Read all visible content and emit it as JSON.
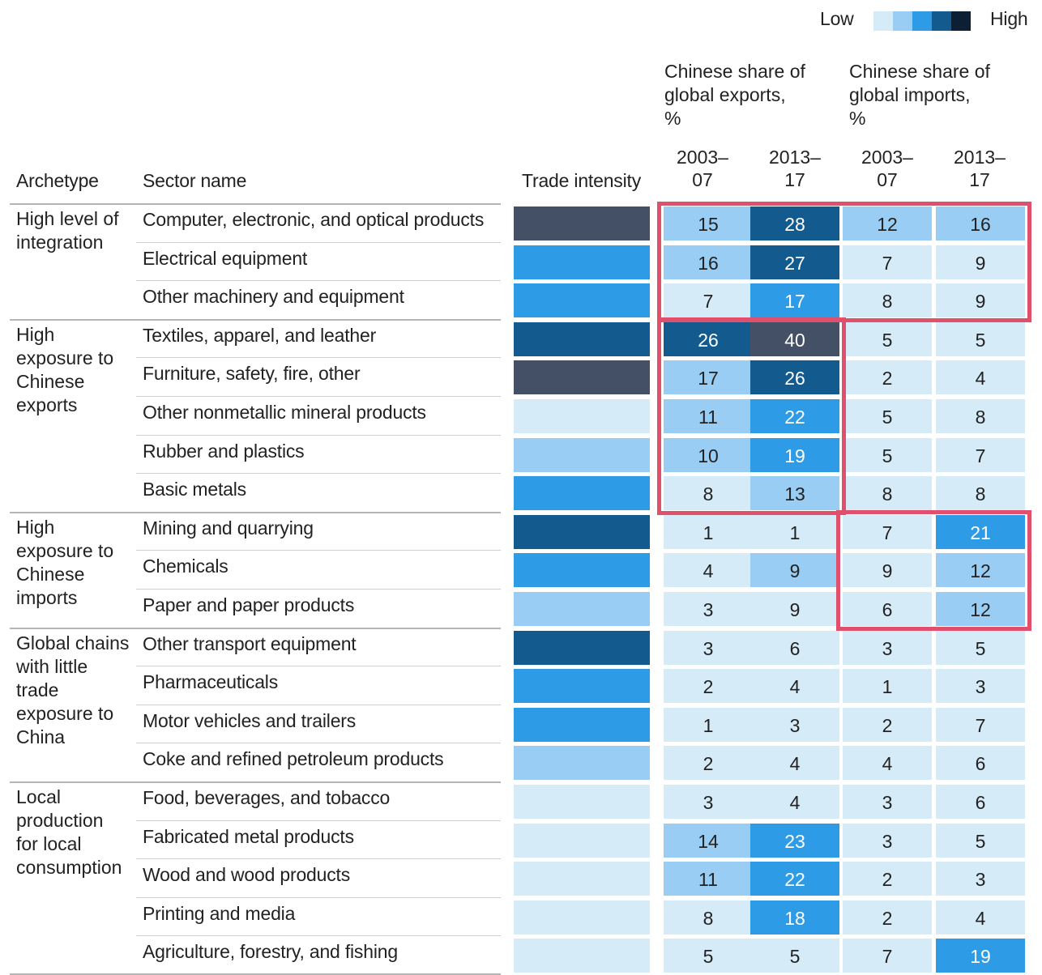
{
  "legend": {
    "low_label": "Low",
    "high_label": "High",
    "colors": [
      "#d6ebf8",
      "#99cdf3",
      "#2e9be6",
      "#135b8f",
      "#0c1f33"
    ]
  },
  "headers": {
    "archetype": "Archetype",
    "sector": "Sector name",
    "trade_intensity": "Trade intensity",
    "exports_group": [
      "Chinese share of",
      "global exports,",
      "%"
    ],
    "imports_group": [
      "Chinese share of",
      "global imports,",
      "%"
    ],
    "periods": [
      [
        "2003–",
        "07"
      ],
      [
        "2013–",
        "17"
      ],
      [
        "2003–",
        "07"
      ],
      [
        "2013–",
        "17"
      ]
    ]
  },
  "palette": {
    "1": "#d6ebf8",
    "2": "#99cdf3",
    "3": "#2e9be6",
    "4": "#135b8f",
    "5": "#435066"
  },
  "highlight_color": "#e0506d",
  "chart_data": {
    "type": "table",
    "columns": [
      "Archetype",
      "Sector name",
      "Trade intensity",
      "Chinese share of global exports, % 2003–07",
      "Chinese share of global exports, % 2013–17",
      "Chinese share of global imports, % 2003–07",
      "Chinese share of global imports, % 2013–17"
    ],
    "groups": [
      {
        "archetype": [
          "High level of",
          "integration"
        ],
        "rows": [
          0,
          1,
          2
        ]
      },
      {
        "archetype": [
          "High",
          "exposure to",
          "Chinese",
          "exports"
        ],
        "rows": [
          3,
          4,
          5,
          6,
          7
        ]
      },
      {
        "archetype": [
          "High",
          "exposure to",
          "Chinese",
          "imports"
        ],
        "rows": [
          8,
          9,
          10
        ]
      },
      {
        "archetype": [
          "Global chains",
          "with little",
          "trade",
          "exposure to",
          "China"
        ],
        "rows": [
          11,
          12,
          13,
          14
        ]
      },
      {
        "archetype": [
          "Local",
          "production",
          "for local",
          "consumption"
        ],
        "rows": [
          15,
          16,
          17,
          18,
          19
        ]
      }
    ],
    "rows": [
      {
        "sector": "Computer, electronic, and optical products",
        "trade_intensity_level": 5,
        "values": [
          15,
          28,
          12,
          16
        ],
        "levels": [
          2,
          4,
          2,
          2
        ]
      },
      {
        "sector": "Electrical equipment",
        "trade_intensity_level": 3,
        "values": [
          16,
          27,
          7,
          9
        ],
        "levels": [
          2,
          4,
          1,
          1
        ]
      },
      {
        "sector": "Other machinery and equipment",
        "trade_intensity_level": 3,
        "values": [
          7,
          17,
          8,
          9
        ],
        "levels": [
          1,
          3,
          1,
          1
        ]
      },
      {
        "sector": "Textiles, apparel, and leather",
        "trade_intensity_level": 4,
        "values": [
          26,
          40,
          5,
          5
        ],
        "levels": [
          4,
          5,
          1,
          1
        ]
      },
      {
        "sector": "Furniture, safety, fire, other",
        "trade_intensity_level": 5,
        "values": [
          17,
          26,
          2,
          4
        ],
        "levels": [
          2,
          4,
          1,
          1
        ]
      },
      {
        "sector": "Other nonmetallic mineral products",
        "trade_intensity_level": 1,
        "values": [
          11,
          22,
          5,
          8
        ],
        "levels": [
          2,
          3,
          1,
          1
        ]
      },
      {
        "sector": "Rubber and plastics",
        "trade_intensity_level": 2,
        "values": [
          10,
          19,
          5,
          7
        ],
        "levels": [
          2,
          3,
          1,
          1
        ]
      },
      {
        "sector": "Basic metals",
        "trade_intensity_level": 3,
        "values": [
          8,
          13,
          8,
          8
        ],
        "levels": [
          1,
          2,
          1,
          1
        ]
      },
      {
        "sector": "Mining and quarrying",
        "trade_intensity_level": 4,
        "values": [
          1,
          1,
          7,
          21
        ],
        "levels": [
          1,
          1,
          1,
          3
        ]
      },
      {
        "sector": "Chemicals",
        "trade_intensity_level": 3,
        "values": [
          4,
          9,
          9,
          12
        ],
        "levels": [
          1,
          2,
          1,
          2
        ]
      },
      {
        "sector": "Paper and paper products",
        "trade_intensity_level": 2,
        "values": [
          3,
          9,
          6,
          12
        ],
        "levels": [
          1,
          1,
          1,
          2
        ]
      },
      {
        "sector": "Other transport equipment",
        "trade_intensity_level": 4,
        "values": [
          3,
          6,
          3,
          5
        ],
        "levels": [
          1,
          1,
          1,
          1
        ]
      },
      {
        "sector": "Pharmaceuticals",
        "trade_intensity_level": 3,
        "values": [
          2,
          4,
          1,
          3
        ],
        "levels": [
          1,
          1,
          1,
          1
        ]
      },
      {
        "sector": "Motor vehicles and trailers",
        "trade_intensity_level": 3,
        "values": [
          1,
          3,
          2,
          7
        ],
        "levels": [
          1,
          1,
          1,
          1
        ]
      },
      {
        "sector": "Coke and refined petroleum products",
        "trade_intensity_level": 2,
        "values": [
          2,
          4,
          4,
          6
        ],
        "levels": [
          1,
          1,
          1,
          1
        ]
      },
      {
        "sector": "Food, beverages, and tobacco",
        "trade_intensity_level": 1,
        "values": [
          3,
          4,
          3,
          6
        ],
        "levels": [
          1,
          1,
          1,
          1
        ]
      },
      {
        "sector": "Fabricated metal products",
        "trade_intensity_level": 1,
        "values": [
          14,
          23,
          3,
          5
        ],
        "levels": [
          2,
          3,
          1,
          1
        ]
      },
      {
        "sector": "Wood and wood products",
        "trade_intensity_level": 1,
        "values": [
          11,
          22,
          2,
          3
        ],
        "levels": [
          2,
          3,
          1,
          1
        ]
      },
      {
        "sector": "Printing and media",
        "trade_intensity_level": 1,
        "values": [
          8,
          18,
          2,
          4
        ],
        "levels": [
          1,
          3,
          1,
          1
        ]
      },
      {
        "sector": "Agriculture, forestry, and fishing",
        "trade_intensity_level": 1,
        "values": [
          5,
          5,
          7,
          19
        ],
        "levels": [
          1,
          1,
          1,
          3
        ]
      }
    ],
    "highlights": [
      {
        "rows": [
          0,
          2
        ],
        "cols": [
          0,
          3
        ]
      },
      {
        "rows": [
          3,
          7
        ],
        "cols": [
          0,
          1
        ]
      },
      {
        "rows": [
          8,
          10
        ],
        "cols": [
          2,
          3
        ]
      }
    ]
  }
}
